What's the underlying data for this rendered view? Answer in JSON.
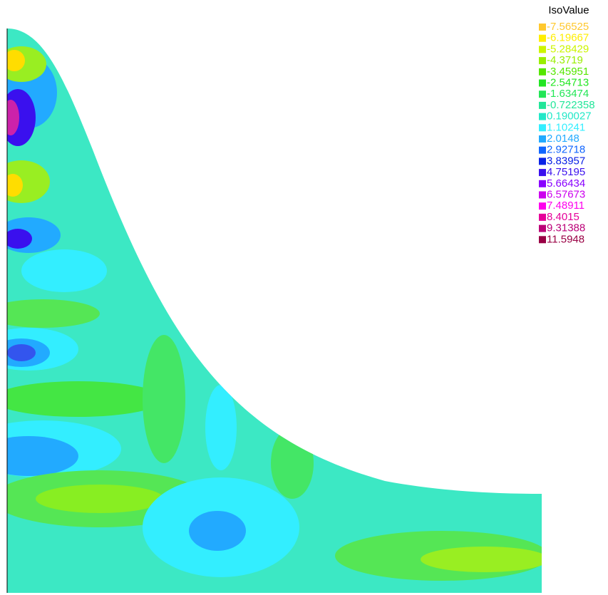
{
  "legend": {
    "title": "IsoValue",
    "entries": [
      {
        "label": "-7.56525",
        "color": "#ffc82e"
      },
      {
        "label": "-6.19667",
        "color": "#ffee00"
      },
      {
        "label": "-5.28429",
        "color": "#ccf500"
      },
      {
        "label": "-4.3719",
        "color": "#99ee00"
      },
      {
        "label": "-3.45951",
        "color": "#55e600"
      },
      {
        "label": "-2.54713",
        "color": "#22e622"
      },
      {
        "label": "-1.63474",
        "color": "#22e655"
      },
      {
        "label": "-0.722358",
        "color": "#22e699"
      },
      {
        "label": "0.190027",
        "color": "#22e8c8"
      },
      {
        "label": "1.10241",
        "color": "#33eeff"
      },
      {
        "label": "2.0148",
        "color": "#22aaff"
      },
      {
        "label": "2.92718",
        "color": "#1166ff"
      },
      {
        "label": "3.83957",
        "color": "#0a22e6"
      },
      {
        "label": "4.75195",
        "color": "#3a10ee"
      },
      {
        "label": "5.66434",
        "color": "#8800ff"
      },
      {
        "label": "6.57673",
        "color": "#cc00ee"
      },
      {
        "label": "7.48911",
        "color": "#ff00ee"
      },
      {
        "label": "8.4015",
        "color": "#e6009a"
      },
      {
        "label": "9.31388",
        "color": "#bb0077"
      },
      {
        "label": "11.5948",
        "color": "#990044"
      }
    ]
  }
}
